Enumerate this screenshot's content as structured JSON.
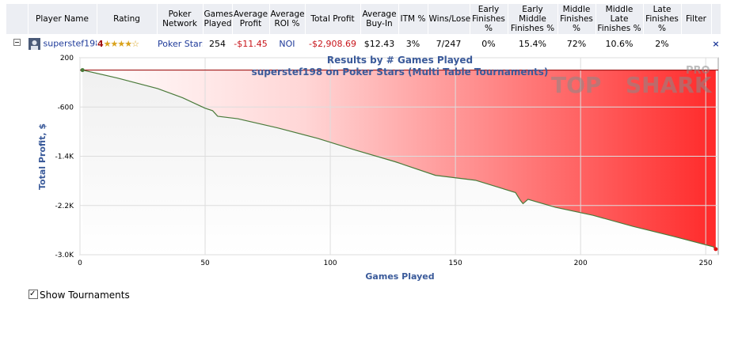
{
  "table": {
    "headers": [
      "Player Name",
      "Rating",
      "Poker Network",
      "Games Played",
      "Average Profit",
      "Average ROI %",
      "Total Profit",
      "Average Buy-In",
      "ITM %",
      "Wins/Lose",
      "Early Finishes %",
      "Early Middle Finishes %",
      "Middle Finishes %",
      "Middle Late Finishes %",
      "Late Finishes %",
      "Filter"
    ],
    "row": {
      "player": "superstef198",
      "rating": "4",
      "network": "Poker Stars",
      "games": "254",
      "avg_profit": "-$11.45",
      "avg_roi": "NOI",
      "total_profit": "-$2,908.69",
      "avg_buyin": "$12.43",
      "itm": "3%",
      "wins_lose": "7/247",
      "early": "0%",
      "early_middle": "15.4%",
      "middle": "72%",
      "middle_late": "10.6%",
      "late": "2%",
      "remove": "×"
    }
  },
  "chart_data": {
    "type": "line",
    "title": "Results by # Games Played",
    "subtitle": "superstef198 on Poker Stars (Multi Table Tournaments)",
    "watermark": {
      "left": "TOP",
      "right": "SHARK",
      "badge": "PRO"
    },
    "xlabel": "Games Played",
    "ylabel": "Total Profit, $",
    "x": [
      1,
      15,
      31,
      41,
      50,
      53,
      55,
      63,
      79,
      95,
      110,
      126,
      142,
      158,
      174,
      176,
      177,
      179,
      190,
      205,
      221,
      237,
      253,
      254
    ],
    "series": [
      {
        "name": "superstef198",
        "color": "#4a7a3a",
        "values": [
          0,
          -130,
          -300,
          -450,
          -620,
          -660,
          -750,
          -790,
          -940,
          -1110,
          -1300,
          -1490,
          -1710,
          -1790,
          -1990,
          -2120,
          -2170,
          -2100,
          -2230,
          -2360,
          -2540,
          -2700,
          -2870,
          -2908.69
        ]
      }
    ],
    "xlim": [
      0,
      255
    ],
    "ylim": [
      -3000,
      200
    ],
    "xticks": [
      0,
      50,
      100,
      150,
      200,
      250
    ],
    "yticks": [
      200,
      -600,
      {
        "value": -1400,
        "label": "-1.4K"
      },
      {
        "value": -2200,
        "label": "-2.2K"
      },
      {
        "value": -3000,
        "label": "-3.0K"
      }
    ],
    "grid": true,
    "show_toggle": "Show Tournaments"
  }
}
